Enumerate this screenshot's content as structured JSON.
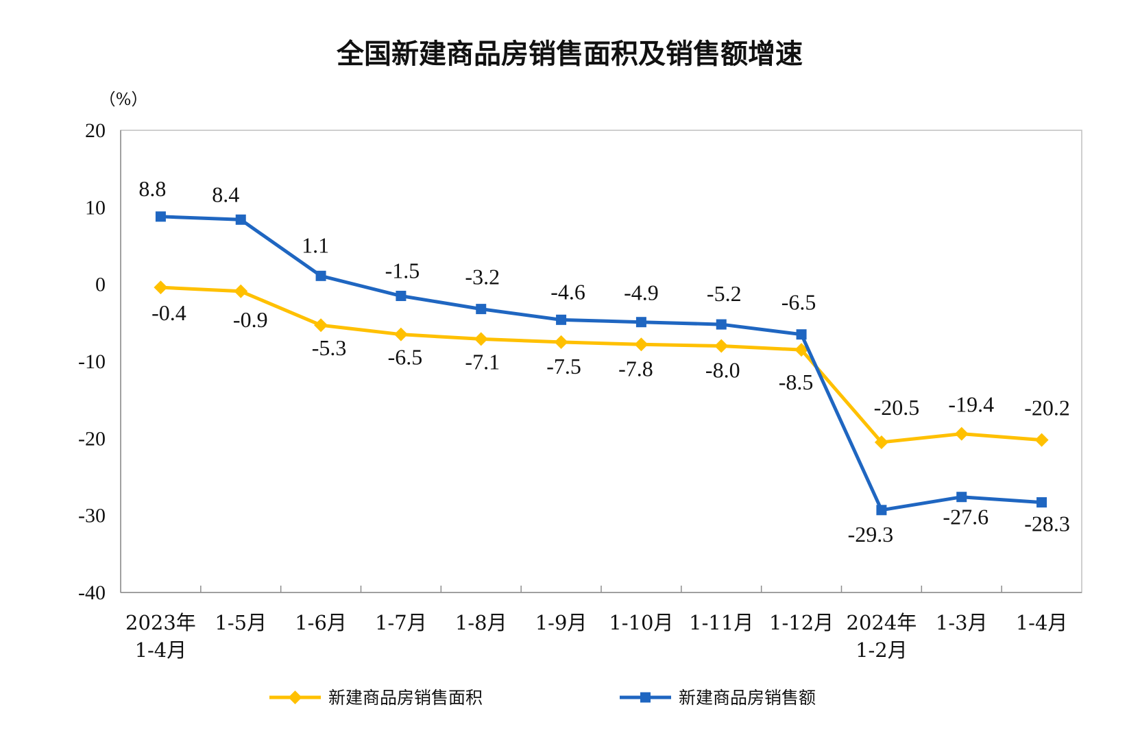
{
  "chart_data": {
    "type": "line",
    "title": "全国新建商品房销售面积及销售额增速",
    "ylabel": "（%）",
    "ylim": [
      -40,
      20
    ],
    "yticks": [
      "20",
      "10",
      "0",
      "-10",
      "-20",
      "-30",
      "-40"
    ],
    "categories": [
      [
        "2023年",
        "1-4月"
      ],
      [
        "1-5月"
      ],
      [
        "1-6月"
      ],
      [
        "1-7月"
      ],
      [
        "1-8月"
      ],
      [
        "1-9月"
      ],
      [
        "1-10月"
      ],
      [
        "1-11月"
      ],
      [
        "1-12月"
      ],
      [
        "2024年",
        "1-2月"
      ],
      [
        "1-3月"
      ],
      [
        "1-4月"
      ]
    ],
    "series": [
      {
        "name": "新建商品房销售面积",
        "color": "#FFC000",
        "marker": "diamond",
        "values": [
          -0.4,
          -0.9,
          -5.3,
          -6.5,
          -7.1,
          -7.5,
          -7.8,
          -8.0,
          -8.5,
          -20.5,
          -19.4,
          -20.2
        ],
        "labels": [
          "-0.4",
          "-0.9",
          "-5.3",
          "-6.5",
          "-7.1",
          "-7.5",
          "-7.8",
          "-8.0",
          "-8.5",
          "-20.5",
          "-19.4",
          "-20.2"
        ]
      },
      {
        "name": "新建商品房销售额",
        "color": "#1F66C1",
        "marker": "square",
        "values": [
          8.8,
          8.4,
          1.1,
          -1.5,
          -3.2,
          -4.6,
          -4.9,
          -5.2,
          -6.5,
          -29.3,
          -27.6,
          -28.3
        ],
        "labels": [
          "8.8",
          "8.4",
          "1.1",
          "-1.5",
          "-3.2",
          "-4.6",
          "-4.9",
          "-5.2",
          "-6.5",
          "-29.3",
          "-27.6",
          "-28.3"
        ]
      }
    ],
    "legend_position": "bottom"
  }
}
